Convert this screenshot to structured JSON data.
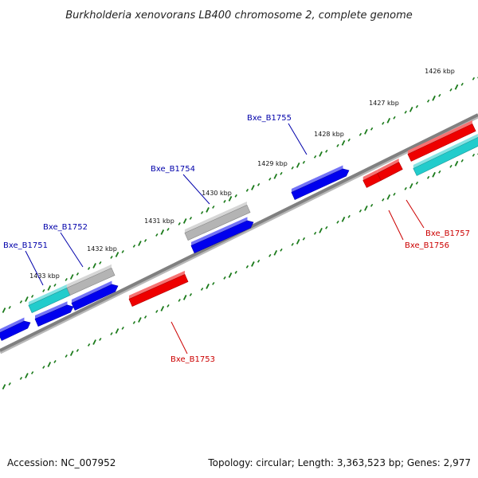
{
  "title": "Burkholderia xenovorans LB400 chromosome 2, complete genome",
  "footer": {
    "accession": "Accession: NC_007952",
    "summary": "Topology: circular; Length: 3,363,523 bp; Genes: 2,977"
  },
  "colors": {
    "backbone": "#808080",
    "tick": "#1a7a1a",
    "forward_gene": "#0000ee",
    "reverse_gene": "#ee0000",
    "cyan_gene": "#22cccc",
    "gray_gene": "#b4b4b4",
    "label_forward": "#0000aa",
    "label_reverse": "#cc0000"
  },
  "kbp_labels": [
    "1426 kbp",
    "1427 kbp",
    "1428 kbp",
    "1429 kbp",
    "1430 kbp",
    "1431 kbp",
    "1432 kbp",
    "1433 kbp"
  ],
  "gene_labels": [
    {
      "text": "Bxe_B1751",
      "strand": "forward"
    },
    {
      "text": "Bxe_B1752",
      "strand": "forward"
    },
    {
      "text": "Bxe_B1754",
      "strand": "forward"
    },
    {
      "text": "Bxe_B1755",
      "strand": "forward"
    },
    {
      "text": "Bxe_B1753",
      "strand": "reverse"
    },
    {
      "text": "Bxe_B1756",
      "strand": "reverse"
    },
    {
      "text": "Bxe_B1757",
      "strand": "reverse"
    }
  ]
}
